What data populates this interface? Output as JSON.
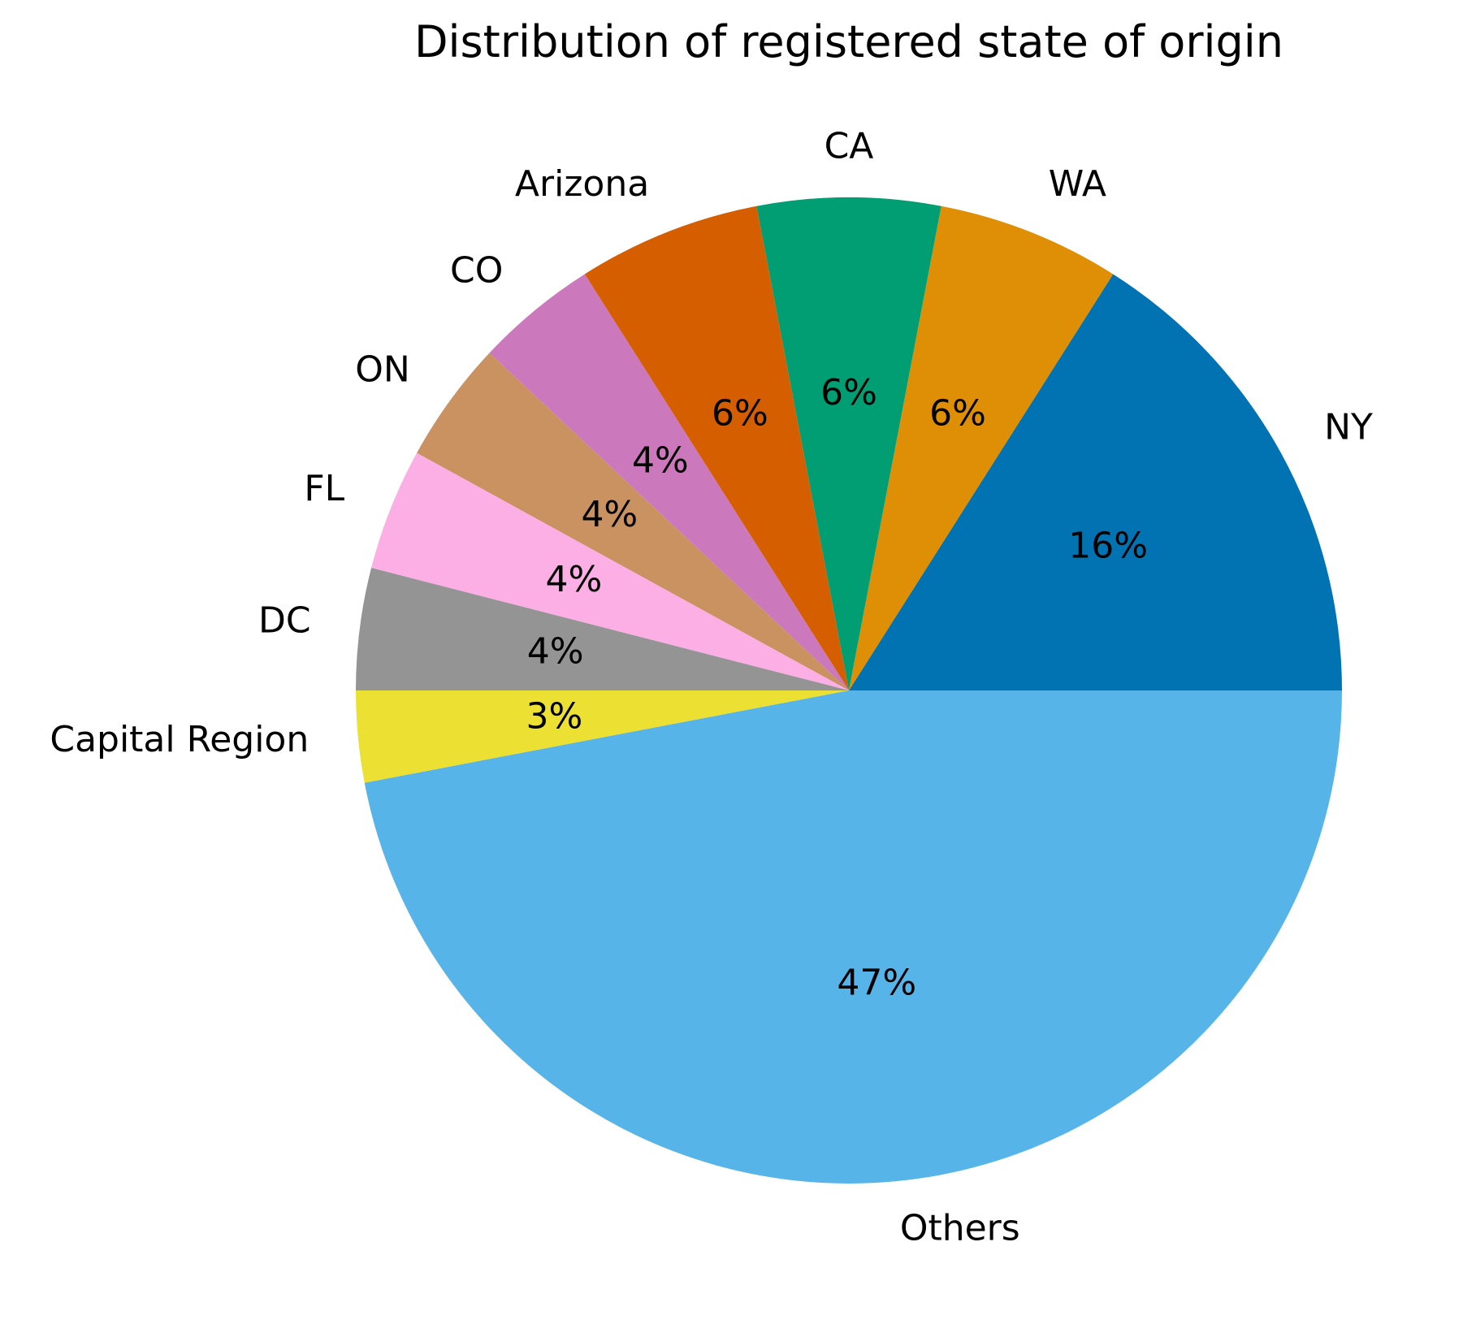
{
  "chart_data": {
    "type": "pie",
    "title": "Distribution of registered state of origin",
    "start_angle_deg": 0,
    "direction": "counterclockwise",
    "slices": [
      {
        "label": "NY",
        "value": 16,
        "pct_label": "16%",
        "color": "#0173b2"
      },
      {
        "label": "WA",
        "value": 6,
        "pct_label": "6%",
        "color": "#de8f05"
      },
      {
        "label": "CA",
        "value": 6,
        "pct_label": "6%",
        "color": "#029e73"
      },
      {
        "label": "Arizona",
        "value": 6,
        "pct_label": "6%",
        "color": "#d55e00"
      },
      {
        "label": "CO",
        "value": 4,
        "pct_label": "4%",
        "color": "#cc78bc"
      },
      {
        "label": "ON",
        "value": 4,
        "pct_label": "4%",
        "color": "#ca9161"
      },
      {
        "label": "FL",
        "value": 4,
        "pct_label": "4%",
        "color": "#fbafe4"
      },
      {
        "label": "DC",
        "value": 4,
        "pct_label": "4%",
        "color": "#949494"
      },
      {
        "label": "Capital Region",
        "value": 3,
        "pct_label": "3%",
        "color": "#ece133"
      },
      {
        "label": "Others",
        "value": 47,
        "pct_label": "47%",
        "color": "#56b4e9"
      }
    ]
  }
}
